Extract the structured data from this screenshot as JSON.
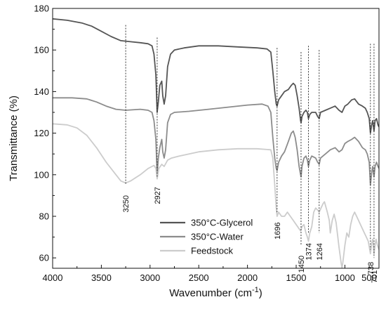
{
  "chart_data": {
    "type": "line",
    "xlabel": "Wavenumber (cm",
    "xlabel_sup": "-1",
    "xlabel_tail": ")",
    "ylabel": "Transmittance (%)",
    "xlim": [
      4000,
      650
    ],
    "ylim": [
      55,
      180
    ],
    "x_reversed": true,
    "xticks": [
      "4000",
      "3500",
      "3000",
      "2500",
      "2000",
      "1500",
      "1000",
      "500"
    ],
    "xtick_values": [
      4000,
      3500,
      3000,
      2500,
      2000,
      1500,
      1000,
      500
    ],
    "yticks": [
      "60",
      "80",
      "100",
      "120",
      "140",
      "160",
      "180"
    ],
    "ytick_values": [
      60,
      80,
      100,
      120,
      140,
      160,
      180
    ],
    "legend_position": "bottom-center",
    "series": [
      {
        "name": "350°C-Glycerol",
        "color": "#555555",
        "points": [
          [
            4000,
            175
          ],
          [
            3850,
            174.3
          ],
          [
            3700,
            173
          ],
          [
            3600,
            171.5
          ],
          [
            3500,
            169
          ],
          [
            3400,
            166.5
          ],
          [
            3300,
            164.5
          ],
          [
            3200,
            164
          ],
          [
            3100,
            163.5
          ],
          [
            3020,
            163
          ],
          [
            2980,
            162
          ],
          [
            2960,
            158
          ],
          [
            2940,
            148
          ],
          [
            2927,
            130
          ],
          [
            2915,
            135
          ],
          [
            2900,
            143
          ],
          [
            2880,
            145
          ],
          [
            2870,
            138
          ],
          [
            2855,
            134
          ],
          [
            2840,
            138
          ],
          [
            2820,
            152
          ],
          [
            2790,
            158
          ],
          [
            2750,
            160
          ],
          [
            2650,
            161
          ],
          [
            2500,
            162
          ],
          [
            2300,
            162
          ],
          [
            2100,
            161.5
          ],
          [
            1900,
            161
          ],
          [
            1800,
            160.5
          ],
          [
            1760,
            159
          ],
          [
            1740,
            150
          ],
          [
            1720,
            140
          ],
          [
            1705,
            134
          ],
          [
            1696,
            133
          ],
          [
            1680,
            136
          ],
          [
            1650,
            138
          ],
          [
            1620,
            140
          ],
          [
            1580,
            141
          ],
          [
            1550,
            143
          ],
          [
            1530,
            144
          ],
          [
            1510,
            143
          ],
          [
            1490,
            138
          ],
          [
            1470,
            132
          ],
          [
            1455,
            126
          ],
          [
            1450,
            125
          ],
          [
            1440,
            128
          ],
          [
            1420,
            130
          ],
          [
            1400,
            131
          ],
          [
            1385,
            130
          ],
          [
            1374,
            127
          ],
          [
            1360,
            129
          ],
          [
            1340,
            130
          ],
          [
            1300,
            130
          ],
          [
            1280,
            128
          ],
          [
            1264,
            127
          ],
          [
            1250,
            130
          ],
          [
            1200,
            131
          ],
          [
            1150,
            132
          ],
          [
            1100,
            133
          ],
          [
            1060,
            131
          ],
          [
            1030,
            130
          ],
          [
            1000,
            133
          ],
          [
            970,
            134
          ],
          [
            930,
            136
          ],
          [
            900,
            136.5
          ],
          [
            860,
            134
          ],
          [
            820,
            133
          ],
          [
            790,
            132
          ],
          [
            770,
            130
          ],
          [
            750,
            127
          ],
          [
            738,
            120
          ],
          [
            725,
            124
          ],
          [
            715,
            126
          ],
          [
            701,
            121
          ],
          [
            690,
            126
          ],
          [
            675,
            127
          ],
          [
            660,
            124
          ],
          [
            650,
            123
          ]
        ]
      },
      {
        "name": "350°C-Water",
        "color": "#8c8c8c",
        "points": [
          [
            4000,
            137
          ],
          [
            3800,
            137
          ],
          [
            3650,
            136.5
          ],
          [
            3550,
            135
          ],
          [
            3450,
            133
          ],
          [
            3350,
            131.5
          ],
          [
            3250,
            131
          ],
          [
            3100,
            131.5
          ],
          [
            3020,
            131
          ],
          [
            2980,
            130
          ],
          [
            2960,
            126
          ],
          [
            2940,
            117
          ],
          [
            2927,
            100
          ],
          [
            2915,
            108
          ],
          [
            2900,
            113
          ],
          [
            2880,
            117
          ],
          [
            2870,
            111
          ],
          [
            2855,
            108
          ],
          [
            2840,
            112
          ],
          [
            2820,
            125
          ],
          [
            2790,
            129
          ],
          [
            2750,
            130
          ],
          [
            2600,
            130.5
          ],
          [
            2400,
            131.5
          ],
          [
            2200,
            132.5
          ],
          [
            2000,
            133.5
          ],
          [
            1850,
            134
          ],
          [
            1790,
            133
          ],
          [
            1760,
            130
          ],
          [
            1740,
            118
          ],
          [
            1720,
            108
          ],
          [
            1705,
            103
          ],
          [
            1696,
            102
          ],
          [
            1680,
            106
          ],
          [
            1650,
            109
          ],
          [
            1620,
            111
          ],
          [
            1580,
            116
          ],
          [
            1550,
            120
          ],
          [
            1530,
            121
          ],
          [
            1510,
            118
          ],
          [
            1490,
            112
          ],
          [
            1470,
            104
          ],
          [
            1455,
            100
          ],
          [
            1450,
            99
          ],
          [
            1440,
            104
          ],
          [
            1420,
            108
          ],
          [
            1400,
            109
          ],
          [
            1385,
            107
          ],
          [
            1374,
            104
          ],
          [
            1360,
            107
          ],
          [
            1340,
            109
          ],
          [
            1300,
            108
          ],
          [
            1280,
            106
          ],
          [
            1264,
            105
          ],
          [
            1250,
            108
          ],
          [
            1200,
            110
          ],
          [
            1150,
            112
          ],
          [
            1100,
            113
          ],
          [
            1060,
            111
          ],
          [
            1030,
            112
          ],
          [
            1000,
            115
          ],
          [
            970,
            116
          ],
          [
            930,
            117
          ],
          [
            900,
            118
          ],
          [
            860,
            116
          ],
          [
            820,
            113
          ],
          [
            790,
            112
          ],
          [
            770,
            110
          ],
          [
            750,
            106
          ],
          [
            738,
            95
          ],
          [
            725,
            101
          ],
          [
            715,
            104
          ],
          [
            701,
            99
          ],
          [
            690,
            104
          ],
          [
            675,
            106
          ],
          [
            660,
            104
          ],
          [
            650,
            103
          ]
        ]
      },
      {
        "name": "Feedstock",
        "color": "#cccccc",
        "points": [
          [
            4000,
            124.5
          ],
          [
            3850,
            124
          ],
          [
            3750,
            122.5
          ],
          [
            3650,
            119
          ],
          [
            3550,
            113
          ],
          [
            3450,
            106
          ],
          [
            3350,
            100
          ],
          [
            3300,
            97
          ],
          [
            3250,
            96
          ],
          [
            3200,
            97
          ],
          [
            3100,
            100
          ],
          [
            3020,
            103
          ],
          [
            2980,
            104
          ],
          [
            2960,
            104.5
          ],
          [
            2940,
            103
          ],
          [
            2927,
            98
          ],
          [
            2910,
            103
          ],
          [
            2880,
            105
          ],
          [
            2855,
            104
          ],
          [
            2820,
            107
          ],
          [
            2780,
            108
          ],
          [
            2700,
            109
          ],
          [
            2500,
            111
          ],
          [
            2300,
            112
          ],
          [
            2100,
            112.5
          ],
          [
            1900,
            112.5
          ],
          [
            1760,
            112
          ],
          [
            1740,
            108
          ],
          [
            1720,
            95
          ],
          [
            1705,
            84
          ],
          [
            1696,
            80
          ],
          [
            1680,
            82
          ],
          [
            1650,
            80
          ],
          [
            1620,
            80
          ],
          [
            1590,
            82
          ],
          [
            1560,
            80
          ],
          [
            1530,
            78
          ],
          [
            1500,
            76
          ],
          [
            1470,
            74
          ],
          [
            1455,
            73
          ],
          [
            1440,
            75
          ],
          [
            1420,
            76
          ],
          [
            1400,
            72
          ],
          [
            1385,
            70
          ],
          [
            1374,
            68
          ],
          [
            1360,
            72
          ],
          [
            1340,
            75
          ],
          [
            1320,
            82
          ],
          [
            1300,
            84
          ],
          [
            1280,
            83
          ],
          [
            1264,
            82
          ],
          [
            1245,
            84
          ],
          [
            1225,
            86
          ],
          [
            1210,
            87
          ],
          [
            1180,
            82
          ],
          [
            1160,
            78
          ],
          [
            1150,
            72
          ],
          [
            1130,
            78
          ],
          [
            1110,
            81
          ],
          [
            1090,
            77
          ],
          [
            1060,
            65
          ],
          [
            1040,
            58
          ],
          [
            1030,
            55
          ],
          [
            1020,
            58
          ],
          [
            1000,
            66
          ],
          [
            980,
            72
          ],
          [
            960,
            70
          ],
          [
            940,
            76
          ],
          [
            920,
            80
          ],
          [
            900,
            82
          ],
          [
            880,
            80
          ],
          [
            860,
            78
          ],
          [
            840,
            76
          ],
          [
            820,
            74
          ],
          [
            800,
            72
          ],
          [
            780,
            70
          ],
          [
            760,
            68
          ],
          [
            745,
            64
          ],
          [
            738,
            62
          ],
          [
            725,
            67
          ],
          [
            715,
            69
          ],
          [
            701,
            62
          ],
          [
            690,
            66
          ],
          [
            680,
            69
          ],
          [
            665,
            66
          ],
          [
            650,
            64
          ]
        ]
      }
    ],
    "peak_markers": [
      {
        "x": 3250,
        "label": "3250",
        "y_top": 172,
        "y_bottom": 95,
        "label_y": 86
      },
      {
        "x": 2927,
        "label": "2927",
        "y_top": 166,
        "y_bottom": 99,
        "label_y": 90
      },
      {
        "x": 1696,
        "label": "1696",
        "y_top": 161,
        "y_bottom": 82,
        "label_y": 73
      },
      {
        "x": 1450,
        "label": "1450",
        "y_top": 159,
        "y_bottom": 66,
        "label_y": 57
      },
      {
        "x": 1374,
        "label": "1374",
        "y_top": 162,
        "y_bottom": 72,
        "label_y": 63
      },
      {
        "x": 1264,
        "label": "1264",
        "y_top": 160,
        "y_bottom": 72,
        "label_y": 63
      },
      {
        "x": 738,
        "label": "738",
        "y_top": 163,
        "y_bottom": 64,
        "label_y": 55
      },
      {
        "x": 701,
        "label": "701",
        "y_top": 163,
        "y_bottom": 60,
        "label_y": 51
      }
    ]
  }
}
